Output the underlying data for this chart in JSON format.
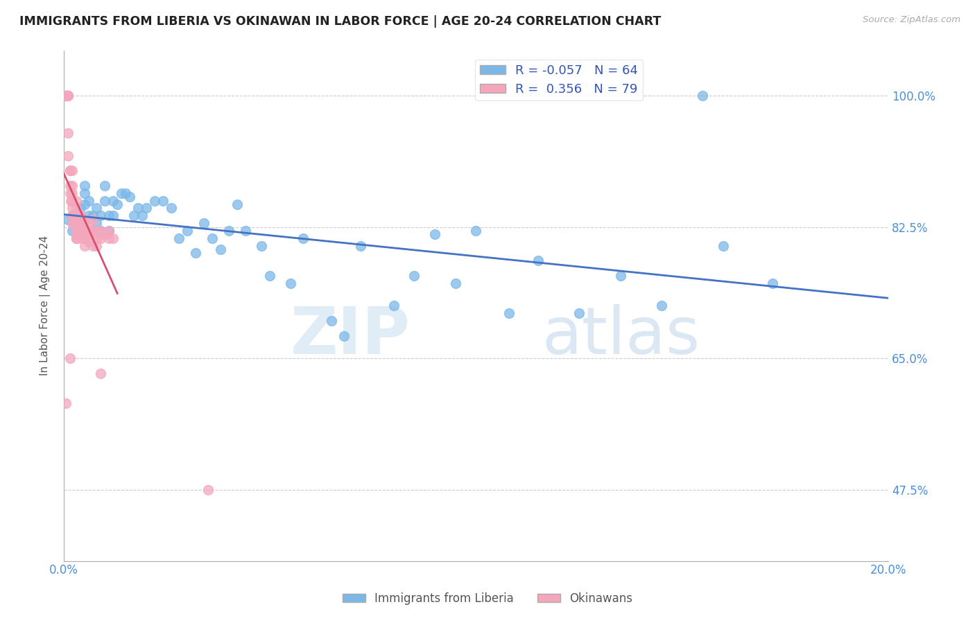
{
  "title": "IMMIGRANTS FROM LIBERIA VS OKINAWAN IN LABOR FORCE | AGE 20-24 CORRELATION CHART",
  "source": "Source: ZipAtlas.com",
  "ylabel_label": "In Labor Force | Age 20-24",
  "xlim": [
    0.0,
    0.2
  ],
  "ylim": [
    0.38,
    1.06
  ],
  "x_ticks": [
    0.0,
    0.04,
    0.08,
    0.12,
    0.16,
    0.2
  ],
  "x_tick_labels": [
    "0.0%",
    "",
    "",
    "",
    "",
    "20.0%"
  ],
  "y_ticks": [
    0.475,
    0.65,
    0.825,
    1.0
  ],
  "y_tick_labels": [
    "47.5%",
    "65.0%",
    "82.5%",
    "100.0%"
  ],
  "blue_R": "-0.057",
  "blue_N": "64",
  "pink_R": "0.356",
  "pink_N": "79",
  "blue_color": "#7bb8e8",
  "pink_color": "#f4a7bc",
  "blue_line_color": "#4472c4",
  "pink_line_color": "#d94f6e",
  "watermark_zip": "ZIP",
  "watermark_atlas": "atlas",
  "legend_label_blue": "Immigrants from Liberia",
  "legend_label_pink": "Okinawans",
  "blue_points_x": [
    0.001,
    0.002,
    0.002,
    0.003,
    0.003,
    0.004,
    0.004,
    0.005,
    0.005,
    0.005,
    0.006,
    0.006,
    0.007,
    0.007,
    0.008,
    0.008,
    0.009,
    0.009,
    0.01,
    0.01,
    0.011,
    0.011,
    0.012,
    0.012,
    0.013,
    0.014,
    0.015,
    0.016,
    0.017,
    0.018,
    0.019,
    0.02,
    0.022,
    0.024,
    0.026,
    0.028,
    0.03,
    0.032,
    0.034,
    0.036,
    0.04,
    0.042,
    0.044,
    0.048,
    0.055,
    0.058,
    0.065,
    0.072,
    0.08,
    0.085,
    0.09,
    0.095,
    0.1,
    0.108,
    0.115,
    0.125,
    0.135,
    0.145,
    0.16,
    0.172,
    0.038,
    0.05,
    0.068,
    0.155
  ],
  "blue_points_y": [
    0.835,
    0.82,
    0.84,
    0.83,
    0.82,
    0.85,
    0.82,
    0.87,
    0.88,
    0.855,
    0.84,
    0.86,
    0.84,
    0.82,
    0.85,
    0.83,
    0.84,
    0.82,
    0.86,
    0.88,
    0.84,
    0.82,
    0.86,
    0.84,
    0.855,
    0.87,
    0.87,
    0.865,
    0.84,
    0.85,
    0.84,
    0.85,
    0.86,
    0.86,
    0.85,
    0.81,
    0.82,
    0.79,
    0.83,
    0.81,
    0.82,
    0.855,
    0.82,
    0.8,
    0.75,
    0.81,
    0.7,
    0.8,
    0.72,
    0.76,
    0.815,
    0.75,
    0.82,
    0.71,
    0.78,
    0.71,
    0.76,
    0.72,
    0.8,
    0.75,
    0.795,
    0.76,
    0.68,
    1.0
  ],
  "pink_points_x": [
    0.0002,
    0.0004,
    0.0005,
    0.0006,
    0.0006,
    0.0008,
    0.0009,
    0.001,
    0.001,
    0.001,
    0.001,
    0.001,
    0.0015,
    0.0015,
    0.0015,
    0.0016,
    0.0017,
    0.002,
    0.002,
    0.002,
    0.002,
    0.002,
    0.002,
    0.002,
    0.0022,
    0.0022,
    0.0024,
    0.0025,
    0.0026,
    0.003,
    0.003,
    0.003,
    0.003,
    0.003,
    0.003,
    0.003,
    0.003,
    0.003,
    0.003,
    0.003,
    0.003,
    0.003,
    0.003,
    0.004,
    0.004,
    0.004,
    0.004,
    0.004,
    0.004,
    0.004,
    0.004,
    0.005,
    0.005,
    0.005,
    0.005,
    0.005,
    0.005,
    0.006,
    0.006,
    0.006,
    0.006,
    0.007,
    0.007,
    0.007,
    0.007,
    0.008,
    0.008,
    0.008,
    0.009,
    0.009,
    0.01,
    0.01,
    0.011,
    0.011,
    0.012,
    0.0015,
    0.009,
    0.035,
    0.0005
  ],
  "pink_points_y": [
    1.0,
    1.0,
    1.0,
    1.0,
    1.0,
    1.0,
    1.0,
    1.0,
    1.0,
    1.0,
    0.95,
    0.92,
    0.9,
    0.9,
    0.88,
    0.87,
    0.86,
    0.9,
    0.88,
    0.87,
    0.86,
    0.85,
    0.84,
    0.83,
    0.84,
    0.83,
    0.84,
    0.84,
    0.84,
    0.86,
    0.85,
    0.84,
    0.84,
    0.84,
    0.83,
    0.83,
    0.82,
    0.82,
    0.82,
    0.82,
    0.815,
    0.81,
    0.81,
    0.84,
    0.84,
    0.83,
    0.825,
    0.82,
    0.82,
    0.815,
    0.81,
    0.835,
    0.83,
    0.82,
    0.815,
    0.81,
    0.8,
    0.83,
    0.82,
    0.81,
    0.805,
    0.835,
    0.82,
    0.815,
    0.8,
    0.82,
    0.81,
    0.8,
    0.82,
    0.81,
    0.815,
    0.815,
    0.82,
    0.81,
    0.81,
    0.65,
    0.63,
    0.475,
    0.59
  ]
}
